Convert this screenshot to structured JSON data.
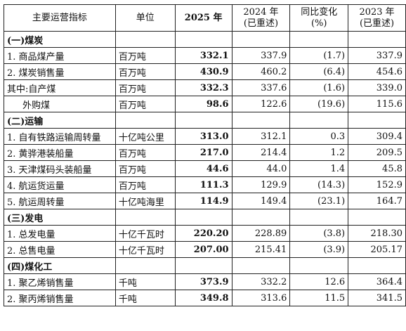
{
  "headers": {
    "indicator": "主要运营指标",
    "unit": "单位",
    "y2025": "2025 年",
    "y2024_l1": "2024 年",
    "y2024_l2": "(已重述)",
    "change_l1": "同比变化",
    "change_l2": "(%)",
    "y2023_l1": "2023 年",
    "y2023_l2": "(已重述)"
  },
  "sections": [
    {
      "title": "(一)煤炭",
      "rows": [
        {
          "label": "1. 商品煤产量",
          "unit": "百万吨",
          "v2025": "332.1",
          "v2024": "337.9",
          "change": "(1.7)",
          "v2023": "337.9",
          "indent": false
        },
        {
          "label": "2. 煤炭销售量",
          "unit": "百万吨",
          "v2025": "430.9",
          "v2024": "460.2",
          "change": "(6.4)",
          "v2023": "454.6",
          "indent": false
        },
        {
          "label": "其中:自产煤",
          "unit": "百万吨",
          "v2025": "332.3",
          "v2024": "337.6",
          "change": "(1.6)",
          "v2023": "339.0",
          "indent": false
        },
        {
          "label": "外购煤",
          "unit": "百万吨",
          "v2025": "98.6",
          "v2024": "122.6",
          "change": "(19.6)",
          "v2023": "115.6",
          "indent": true
        }
      ]
    },
    {
      "title": "(二)运输",
      "rows": [
        {
          "label": "1. 自有铁路运输周转量",
          "unit": "十亿吨公里",
          "v2025": "313.0",
          "v2024": "312.1",
          "change": "0.3",
          "v2023": "309.4",
          "indent": false
        },
        {
          "label": "2. 黄骅港装船量",
          "unit": "百万吨",
          "v2025": "217.0",
          "v2024": "214.4",
          "change": "1.2",
          "v2023": "209.5",
          "indent": false
        },
        {
          "label": "3. 天津煤码头装船量",
          "unit": "百万吨",
          "v2025": "44.6",
          "v2024": "44.0",
          "change": "1.4",
          "v2023": "45.8",
          "indent": false
        },
        {
          "label": "4. 航运货运量",
          "unit": "百万吨",
          "v2025": "111.3",
          "v2024": "129.9",
          "change": "(14.3)",
          "v2023": "152.9",
          "indent": false
        },
        {
          "label": "5. 航运周转量",
          "unit": "十亿吨海里",
          "v2025": "114.9",
          "v2024": "149.4",
          "change": "(23.1)",
          "v2023": "164.7",
          "indent": false
        }
      ]
    },
    {
      "title": "(三)发电",
      "rows": [
        {
          "label": "1. 总发电量",
          "unit": "十亿千瓦时",
          "v2025": "220.20",
          "v2024": "228.89",
          "change": "(3.8)",
          "v2023": "218.30",
          "indent": false
        },
        {
          "label": "2. 总售电量",
          "unit": "十亿千瓦时",
          "v2025": "207.00",
          "v2024": "215.41",
          "change": "(3.9)",
          "v2023": "205.17",
          "indent": false
        }
      ]
    },
    {
      "title": "(四)煤化工",
      "rows": [
        {
          "label": "1. 聚乙烯销售量",
          "unit": "千吨",
          "v2025": "373.9",
          "v2024": "332.2",
          "change": "12.6",
          "v2023": "364.4",
          "indent": false
        },
        {
          "label": "2. 聚丙烯销售量",
          "unit": "千吨",
          "v2025": "349.8",
          "v2024": "313.6",
          "change": "11.5",
          "v2023": "341.5",
          "indent": false
        }
      ]
    }
  ]
}
